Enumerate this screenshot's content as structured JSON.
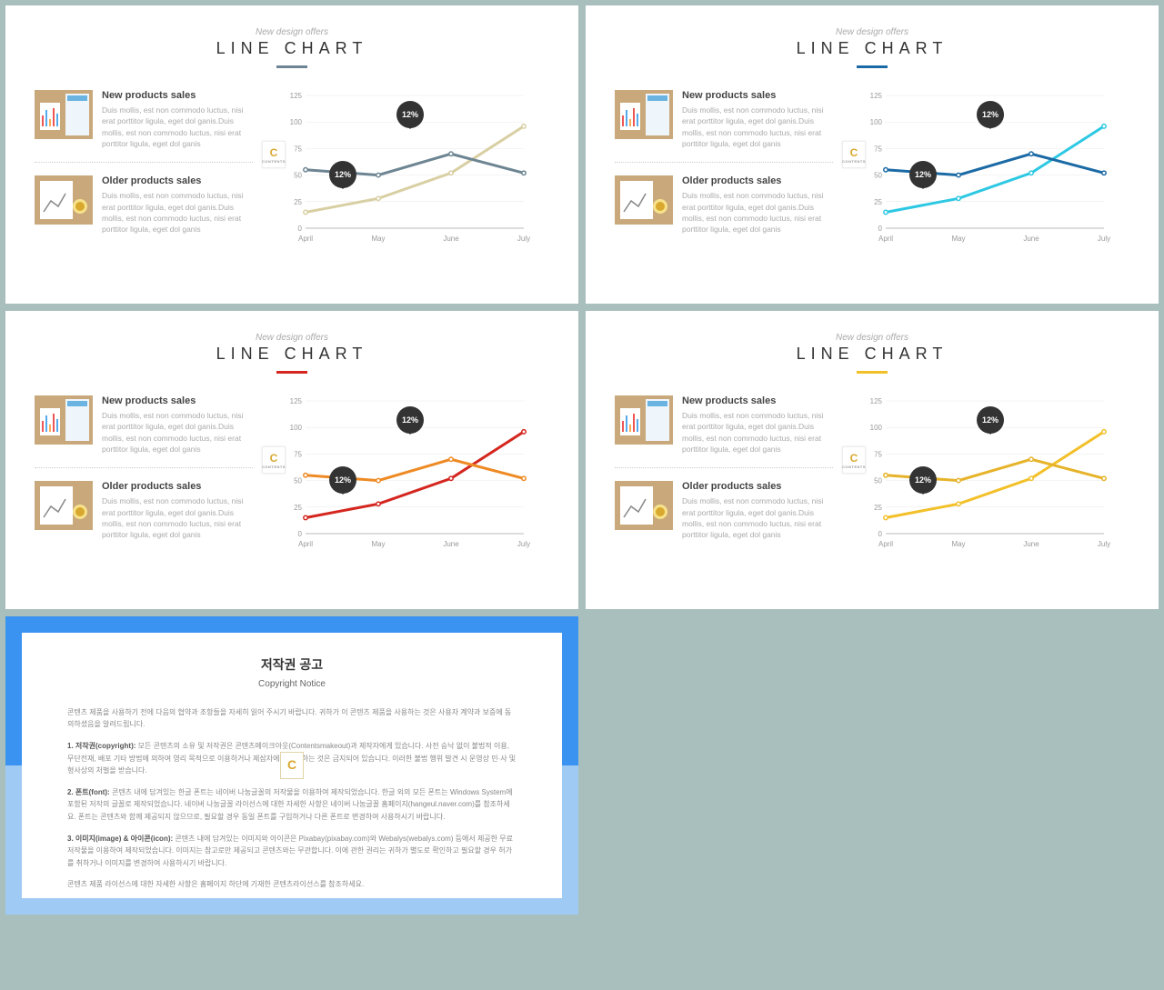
{
  "common": {
    "subtitle": "New design offers",
    "title": "LINE   CHART",
    "block1_title": "New products sales",
    "block2_title": "Older products sales",
    "body_text": "Duis mollis, est non commodo luctus, nisi erat porttitor ligula, eget dol ganis.Duis mollis, est non commodo luctus, nisi erat porttitor ligula, eget dol ganis",
    "callout1": "12%",
    "callout2": "12%",
    "badge_letter": "C",
    "badge_sub": "CONTENTS",
    "chart": {
      "categories": [
        "April",
        "May",
        "June",
        "July"
      ],
      "y_ticks": [
        0,
        25,
        50,
        75,
        100,
        125
      ],
      "ylim": [
        0,
        125
      ],
      "series_a": [
        55,
        50,
        70,
        52
      ],
      "series_b": [
        15,
        28,
        52,
        96
      ],
      "marker_radius": 2.2,
      "line_width": 3,
      "grid_color": "#e8e8e8"
    }
  },
  "slides": [
    {
      "accent": "#6d8592",
      "line_a": "#6d8592",
      "line_b": "#d8cfa3"
    },
    {
      "accent": "#1b6aa5",
      "line_a": "#1b6aa5",
      "line_b": "#2dc8e3"
    },
    {
      "accent": "#d4261f",
      "line_a": "#ee8a24",
      "line_b": "#d4261f"
    },
    {
      "accent": "#f2c029",
      "line_a": "#e6b32a",
      "line_b": "#f2c029"
    }
  ],
  "copyright": {
    "title_kr": "저작권 공고",
    "title_en": "Copyright Notice",
    "intro": "콘텐츠 제품을 사용하기 전에 다음의 협약과 조항들을 자세히 읽어 주시기 바랍니다. 귀하가 이 콘텐츠 제품을 사용하는 것은 사용자 계약과 보증에 동의하셨음을 알려드립니다.",
    "p1_label": "1. 저작권(copyright):",
    "p1": "모든 콘텐츠의 소유 및 저작권은 콘텐츠메이크아웃(Contentsmakeout)과 제작자에게 있습니다. 사전 승낙 없이 불법적 이용, 무단전재, 배포 기타 방법에 의하여 영리 목적으로 이용하거나 제삼자에게 이용하는 것은 금지되어 있습니다. 이러한 불법 행위 발견 시 운영상 민·사 및 형사상의 처벌을 받습니다.",
    "p2_label": "2. 폰트(font):",
    "p2": "콘텐츠 내에 담겨있는 한글 폰트는 네이버 나눔글꼴의 저작물을 이용하여 제작되었습니다. 한글 외의 모든 폰트는 Windows System에 포함된 저작의 글꼴로 제작되었습니다. 네이버 나눔글꼴 라이선스에 대한 자세한 사항은 네이버 나눔글꼴 홈페이지(hangeul.naver.com)를 참조하세요. 폰트는 콘텐츠와 함께 제공되지 않으므로, 필요할 경우 동일 폰트를 구입하거나 다른 폰트로 변경하여 사용하시기 바랍니다.",
    "p3_label": "3. 이미지(image) & 아이콘(icon):",
    "p3": "콘텐츠 내에 담겨있는 이미지와 아이콘은 Pixabay(pixabay.com)와 Webalys(webalys.com) 등에서 제공한 무료 저작물을 이용하여 제작되었습니다. 이미지는 참고로만 제공되고 콘텐츠와는 무관합니다. 이에 관한 권리는 귀하가 별도로 확인하고 필요할 경우 허가를 취하거나 이미지를 변경하여 사용하시기 바랍니다.",
    "footer": "콘텐츠 제품 라이선스에 대한 자세한 사항은 홈페이지 하단에 기재한 콘텐츠라이선스를 참조하세요.",
    "frame_color_top": "#3a93f0",
    "frame_color_bottom": "#9fcaf3"
  }
}
